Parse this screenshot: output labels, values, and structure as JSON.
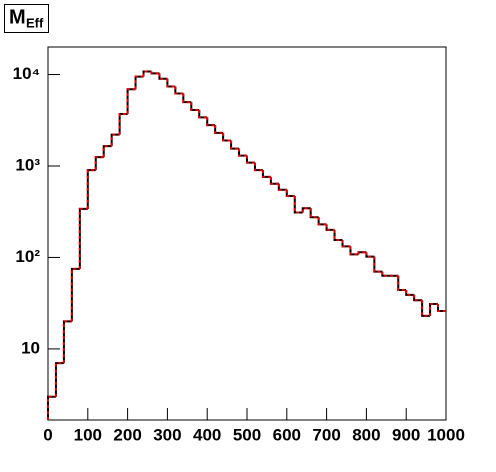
{
  "chart_data": {
    "type": "histogram",
    "title": "M",
    "title_subscript": "Eff",
    "bins": [
      0,
      20,
      40,
      60,
      80,
      100,
      120,
      140,
      160,
      180,
      200,
      220,
      240,
      260,
      280,
      300,
      320,
      340,
      360,
      380,
      400,
      420,
      440,
      460,
      480,
      500,
      520,
      540,
      560,
      580,
      600,
      620,
      640,
      660,
      680,
      700,
      720,
      740,
      760,
      780,
      800,
      820,
      840,
      860,
      880,
      900,
      920,
      940,
      960,
      980,
      1000
    ],
    "values": [
      3,
      7,
      20,
      75,
      340,
      900,
      1250,
      1650,
      2200,
      3700,
      6900,
      9500,
      10800,
      10300,
      9000,
      7400,
      6200,
      5000,
      4100,
      3400,
      2800,
      2300,
      1900,
      1550,
      1300,
      1090,
      900,
      760,
      640,
      550,
      470,
      310,
      345,
      275,
      230,
      200,
      155,
      132,
      108,
      114,
      102,
      70,
      63,
      63,
      44,
      39,
      34,
      23,
      31,
      26
    ],
    "color": "#000000",
    "overlay_color": "#dd0000",
    "xlim": [
      0,
      1000
    ],
    "xticks": [
      0,
      100,
      200,
      300,
      400,
      500,
      600,
      700,
      800,
      900,
      1000
    ],
    "ylim": [
      1.67,
      20000
    ],
    "log_y": true,
    "yticks": [
      10,
      {
        "value": 100,
        "label": "10²"
      },
      {
        "value": 1000,
        "label": "10³"
      },
      {
        "value": 10000,
        "label": "10⁴"
      }
    ]
  }
}
